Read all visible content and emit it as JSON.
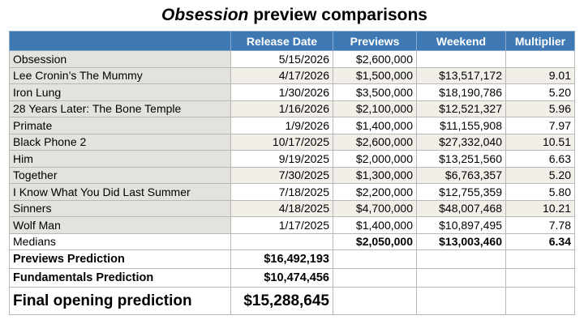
{
  "title": {
    "emphasis": "Obsession",
    "rest": " preview comparisons"
  },
  "columns": [
    "",
    "Release Date",
    "Previews",
    "Weekend",
    "Multiplier"
  ],
  "rows": [
    {
      "name": "Obsession",
      "date": "5/15/2026",
      "previews": "$2,600,000",
      "weekend": "",
      "multiplier": ""
    },
    {
      "name": "Lee Cronin’s The Mummy",
      "date": "4/17/2026",
      "previews": "$1,500,000",
      "weekend": "$13,517,172",
      "multiplier": "9.01"
    },
    {
      "name": "Iron Lung",
      "date": "1/30/2026",
      "previews": "$3,500,000",
      "weekend": "$18,190,786",
      "multiplier": "5.20"
    },
    {
      "name": "28 Years Later: The Bone Temple",
      "date": "1/16/2026",
      "previews": "$2,100,000",
      "weekend": "$12,521,327",
      "multiplier": "5.96"
    },
    {
      "name": "Primate",
      "date": "1/9/2026",
      "previews": "$1,400,000",
      "weekend": "$11,155,908",
      "multiplier": "7.97"
    },
    {
      "name": "Black Phone 2",
      "date": "10/17/2025",
      "previews": "$2,600,000",
      "weekend": "$27,332,040",
      "multiplier": "10.51"
    },
    {
      "name": "Him",
      "date": "9/19/2025",
      "previews": "$2,000,000",
      "weekend": "$13,251,560",
      "multiplier": "6.63"
    },
    {
      "name": "Together",
      "date": "7/30/2025",
      "previews": "$1,300,000",
      "weekend": "$6,763,357",
      "multiplier": "5.20"
    },
    {
      "name": "I Know What You Did Last Summer",
      "date": "7/18/2025",
      "previews": "$2,200,000",
      "weekend": "$12,755,359",
      "multiplier": "5.80"
    },
    {
      "name": "Sinners",
      "date": "4/18/2025",
      "previews": "$4,700,000",
      "weekend": "$48,007,468",
      "multiplier": "10.21"
    },
    {
      "name": "Wolf Man",
      "date": "1/17/2025",
      "previews": "$1,400,000",
      "weekend": "$10,897,495",
      "multiplier": "7.78"
    }
  ],
  "medians": {
    "label": "Medians",
    "previews": "$2,050,000",
    "weekend": "$13,003,460",
    "multiplier": "6.34"
  },
  "previews_prediction": {
    "label": "Previews Prediction",
    "value": "$16,492,193"
  },
  "fundamentals_prediction": {
    "label": "Fundamentals Prediction",
    "value": "$10,474,456"
  },
  "final_prediction": {
    "label": "Final opening prediction",
    "value": "$15,288,645"
  },
  "colors": {
    "header": "#3e79b4",
    "name_column": "#e4e2dc",
    "alt_row": "#f1efe7"
  }
}
